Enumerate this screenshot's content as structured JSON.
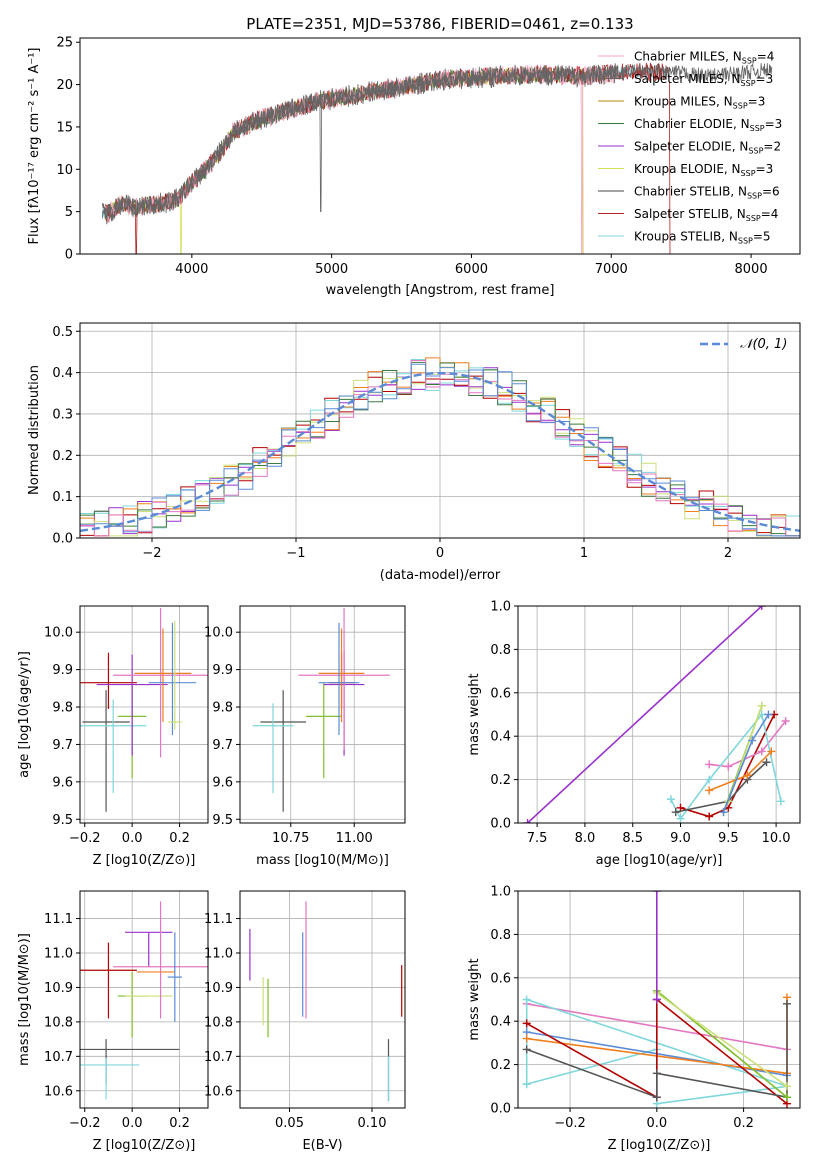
{
  "colors": {
    "Chabrier MILES": "#f5a3bf",
    "Salpeter MILES": "#666666",
    "Kroupa MILES": "#b8860b",
    "Chabrier ELODIE": "#3d7a3d",
    "Salpeter ELODIE": "#9932cc",
    "Kroupa ELODIE": "#d4e157",
    "Chabrier STELIB": "#444444",
    "Salpeter STELIB": "#b22222",
    "Kroupa STELIB": "#7fd7dc",
    "pink": "#e377c2",
    "purple": "#9932cc",
    "blue": "#5b8bd6",
    "orange": "#f07f1e",
    "olive": "#7fbf2a",
    "lime": "#cbe07a",
    "dark": "#555555",
    "red": "#b30000",
    "cyan": "#7fd7dc"
  },
  "chart_data": [
    {
      "type": "line",
      "title": "PLATE=2351, MJD=53786, FIBERID=0461, z=0.133",
      "xlabel": "wavelength [Angstrom, rest frame]",
      "ylabel": "Flux [fλ10⁻¹⁷ erg cm⁻² s⁻¹ A⁻¹]",
      "xlim": [
        3200,
        8350
      ],
      "ylim": [
        0,
        25.5
      ],
      "xticks": [
        "4000",
        "5000",
        "6000",
        "7000",
        "8000"
      ],
      "yticks": [
        "0",
        "5",
        "10",
        "15",
        "20",
        "25"
      ],
      "grid": false,
      "legend": "right",
      "spectrum_x": [
        3400,
        3500,
        3600,
        3700,
        3800,
        3900,
        4000,
        4100,
        4200,
        4300,
        4400,
        4500,
        4700,
        4900,
        5100,
        5300,
        5500,
        5800,
        6000,
        6200,
        6500,
        6800,
        7100,
        7400,
        7700,
        8100
      ],
      "spectrum_y": [
        4.8,
        6.0,
        5.5,
        5.8,
        6.0,
        6.5,
        8.5,
        10.0,
        12.0,
        14.5,
        15.2,
        16.0,
        17.0,
        18.0,
        18.6,
        19.2,
        19.7,
        20.6,
        20.8,
        21.0,
        21.2,
        21.0,
        21.5,
        21.5,
        21.0,
        21.7
      ],
      "series": [
        {
          "name": "Chabrier MILES, N_SSP=4"
        },
        {
          "name": "Salpeter MILES, N_SSP=3"
        },
        {
          "name": "Kroupa MILES, N_SSP=3"
        },
        {
          "name": "Chabrier ELODIE, N_SSP=3"
        },
        {
          "name": "Salpeter ELODIE, N_SSP=2"
        },
        {
          "name": "Kroupa ELODIE, N_SSP=3"
        },
        {
          "name": "Chabrier STELIB, N_SSP=6"
        },
        {
          "name": "Salpeter STELIB, N_SSP=4"
        },
        {
          "name": "Kroupa STELIB, N_SSP=5"
        }
      ]
    },
    {
      "type": "histogram",
      "xlabel": "(data-model)/error",
      "ylabel": "Normed distribution",
      "xlim": [
        -2.5,
        2.5
      ],
      "ylim": [
        0,
        0.52
      ],
      "xticks": [
        "−2",
        "−1",
        "0",
        "1",
        "2"
      ],
      "yticks": [
        "0.0",
        "0.1",
        "0.2",
        "0.3",
        "0.4",
        "0.5"
      ],
      "grid": true,
      "legend": "top-right",
      "reference_curve": "𝒩(0, 1)",
      "bin_width": 0.1
    },
    {
      "type": "scatter",
      "xlabel": "Z [log10(Z/Z⊙)]",
      "ylabel": "age [log10(age/yr)]",
      "xlim": [
        -0.22,
        0.32
      ],
      "ylim": [
        9.49,
        10.07
      ],
      "xticks": [
        "−0.2",
        "0.0",
        "0.2"
      ],
      "yticks": [
        "9.5",
        "9.6",
        "9.7",
        "9.8",
        "9.9",
        "10.0"
      ],
      "grid": true,
      "points": [
        {
          "color": "red",
          "x": -0.1,
          "y": 9.865,
          "xerr": 0.12,
          "yerr": [
            0.07,
            0.08
          ]
        },
        {
          "color": "dark",
          "x": -0.11,
          "y": 9.76,
          "xerr": 0.1,
          "yerr": [
            0.24,
            0.085
          ]
        },
        {
          "color": "cyan",
          "x": -0.08,
          "y": 9.75,
          "xerr": 0.14,
          "yerr": [
            0.18,
            0.07
          ]
        },
        {
          "color": "olive",
          "x": 0.0,
          "y": 9.775,
          "xerr": 0.06,
          "yerr": [
            0.165,
            0.09
          ]
        },
        {
          "color": "purple",
          "x": 0.0,
          "y": 9.86,
          "xerr": 0.15,
          "yerr": [
            0.19,
            0.08
          ]
        },
        {
          "color": "pink",
          "x": 0.12,
          "y": 9.885,
          "xerr": 0.2,
          "yerr": [
            0.22,
            0.18
          ]
        },
        {
          "color": "orange",
          "x": 0.13,
          "y": 9.89,
          "xerr": 0.12,
          "yerr": [
            0.13,
            0.12
          ]
        },
        {
          "color": "blue",
          "x": 0.17,
          "y": 9.865,
          "xerr": 0.1,
          "yerr": [
            0.14,
            0.16
          ]
        },
        {
          "color": "lime",
          "x": 0.18,
          "y": 9.76,
          "xerr": 0.03,
          "yerr": [
            0.02,
            0.27
          ]
        }
      ]
    },
    {
      "type": "scatter",
      "xlabel": "mass [log10(M/M⊙)]",
      "ylabel": "",
      "xlim": [
        10.55,
        11.2
      ],
      "ylim": [
        9.49,
        10.07
      ],
      "xticks": [
        "10.75",
        "11.00"
      ],
      "yticks": [
        "9.5",
        "9.6",
        "9.7",
        "9.8",
        "9.9",
        "10.0"
      ],
      "grid": true,
      "points": [
        {
          "color": "dark",
          "x": 10.72,
          "y": 9.76,
          "xerr": 0.09,
          "yerr": [
            0.24,
            0.085
          ]
        },
        {
          "color": "cyan",
          "x": 10.68,
          "y": 9.75,
          "xerr": 0.08,
          "yerr": [
            0.18,
            0.06
          ]
        },
        {
          "color": "olive",
          "x": 10.88,
          "y": 9.775,
          "xerr": 0.07,
          "yerr": [
            0.165,
            0.09
          ]
        },
        {
          "color": "purple",
          "x": 10.96,
          "y": 9.86,
          "xerr": 0.08,
          "yerr": [
            0.19,
            0.09
          ]
        },
        {
          "color": "red",
          "x": 10.95,
          "y": 9.865,
          "xerr": 0.05,
          "yerr": [
            0.07,
            0.08
          ]
        },
        {
          "color": "pink",
          "x": 10.96,
          "y": 9.885,
          "xerr": 0.18,
          "yerr": [
            0.2,
            0.18
          ]
        },
        {
          "color": "orange",
          "x": 10.95,
          "y": 9.89,
          "xerr": 0.09,
          "yerr": [
            0.13,
            0.12
          ]
        },
        {
          "color": "blue",
          "x": 10.94,
          "y": 9.865,
          "xerr": 0.08,
          "yerr": [
            0.14,
            0.16
          ]
        }
      ]
    },
    {
      "type": "line",
      "xlabel": "age [log10(age/yr)]",
      "ylabel": "mass weight",
      "xlim": [
        7.3,
        10.25
      ],
      "ylim": [
        0,
        1
      ],
      "xticks": [
        "7.5",
        "8.0",
        "8.5",
        "9.0",
        "9.5",
        "10.0"
      ],
      "yticks": [
        "0.0",
        "0.2",
        "0.4",
        "0.6",
        "0.8",
        "1.0"
      ],
      "grid": true,
      "series": [
        {
          "color": "purple",
          "x": [
            7.4,
            9.85
          ],
          "y": [
            0.0,
            1.0
          ]
        },
        {
          "color": "red",
          "x": [
            9.0,
            9.3,
            9.5,
            9.98
          ],
          "y": [
            0.07,
            0.03,
            0.07,
            0.5
          ]
        },
        {
          "color": "pink",
          "x": [
            9.3,
            9.5,
            9.85,
            10.1
          ],
          "y": [
            0.27,
            0.26,
            0.33,
            0.47
          ]
        },
        {
          "color": "cyan",
          "x": [
            8.9,
            9.0,
            9.3,
            9.85,
            10.05
          ],
          "y": [
            0.11,
            0.02,
            0.2,
            0.5,
            0.1
          ]
        },
        {
          "color": "dark",
          "x": [
            8.95,
            9.5,
            9.7,
            9.9
          ],
          "y": [
            0.05,
            0.1,
            0.2,
            0.28
          ]
        },
        {
          "color": "olive",
          "x": [
            9.45,
            9.85
          ],
          "y": [
            0.05,
            0.54
          ]
        },
        {
          "color": "lime",
          "x": [
            9.5,
            9.85
          ],
          "y": [
            0.1,
            0.54
          ]
        },
        {
          "color": "orange",
          "x": [
            9.3,
            9.7,
            9.95
          ],
          "y": [
            0.15,
            0.22,
            0.33
          ]
        },
        {
          "color": "blue",
          "x": [
            9.45,
            9.75,
            9.92
          ],
          "y": [
            0.05,
            0.38,
            0.5
          ]
        }
      ]
    },
    {
      "type": "scatter",
      "xlabel": "Z [log10(Z/Z⊙)]",
      "ylabel": "mass [log10(M/M⊙)]",
      "xlim": [
        -0.22,
        0.32
      ],
      "ylim": [
        10.55,
        11.18
      ],
      "xticks": [
        "−0.2",
        "0.0",
        "0.2"
      ],
      "yticks": [
        "10.6",
        "10.7",
        "10.8",
        "10.9",
        "11.0",
        "11.1"
      ],
      "grid": true,
      "points": [
        {
          "color": "red",
          "x": -0.1,
          "y": 10.95,
          "xerr": 0.12,
          "yerr": [
            0.14,
            0.08
          ]
        },
        {
          "color": "dark",
          "x": -0.11,
          "y": 10.72,
          "xerr": 0.31,
          "yerr": [
            0.1,
            0.03
          ]
        },
        {
          "color": "cyan",
          "x": -0.11,
          "y": 10.675,
          "xerr": 0.14,
          "yerr": [
            0.1,
            0.02
          ]
        },
        {
          "color": "olive",
          "x": 0.0,
          "y": 10.875,
          "xerr": 0.06,
          "yerr": [
            0.12,
            0.07
          ]
        },
        {
          "color": "lime",
          "x": 0.07,
          "y": 10.875,
          "xerr": 0.1,
          "yerr": [
            0.0,
            0.0
          ]
        },
        {
          "color": "purple",
          "x": 0.07,
          "y": 11.06,
          "xerr": 0.1,
          "yerr": [
            0.1,
            0.0
          ]
        },
        {
          "color": "pink",
          "x": 0.12,
          "y": 10.96,
          "xerr": 0.2,
          "yerr": [
            0.15,
            0.19
          ]
        },
        {
          "color": "orange",
          "x": 0.1,
          "y": 10.945,
          "xerr": 0.08,
          "yerr": [
            0.0,
            0.0
          ]
        },
        {
          "color": "blue",
          "x": 0.18,
          "y": 10.93,
          "xerr": 0.03,
          "yerr": [
            0.13,
            0.13
          ]
        }
      ]
    },
    {
      "type": "scatter",
      "xlabel": "E(B-V)",
      "ylabel": "",
      "xlim": [
        0.02,
        0.12
      ],
      "ylim": [
        10.55,
        11.18
      ],
      "xticks": [
        "0.05",
        "0.10"
      ],
      "yticks": [
        "10.6",
        "10.7",
        "10.8",
        "10.9",
        "11.0",
        "11.1"
      ],
      "grid": true,
      "points": [
        {
          "color": "purple",
          "x": 0.026,
          "y": 11.0,
          "yerr": [
            0.08,
            0.07
          ]
        },
        {
          "color": "lime",
          "x": 0.034,
          "y": 10.86,
          "yerr": [
            0.07,
            0.07
          ]
        },
        {
          "color": "olive",
          "x": 0.037,
          "y": 10.84,
          "yerr": [
            0.085,
            0.085
          ]
        },
        {
          "color": "blue",
          "x": 0.058,
          "y": 10.935,
          "yerr": [
            0.12,
            0.125
          ]
        },
        {
          "color": "pink",
          "x": 0.06,
          "y": 10.98,
          "yerr": [
            0.17,
            0.17
          ]
        },
        {
          "color": "dark",
          "x": 0.11,
          "y": 10.66,
          "yerr": [
            0.09,
            0.09
          ]
        },
        {
          "color": "cyan",
          "x": 0.11,
          "y": 10.635,
          "yerr": [
            0.065,
            0.065
          ]
        },
        {
          "color": "red",
          "x": 0.118,
          "y": 10.89,
          "yerr": [
            0.075,
            0.075
          ]
        }
      ]
    },
    {
      "type": "line",
      "xlabel": "Z [log10(Z/Z⊙)]",
      "ylabel": "mass weight",
      "xlim": [
        -0.32,
        0.33
      ],
      "ylim": [
        0,
        1
      ],
      "xticks": [
        "−0.2",
        "0.0",
        "0.2"
      ],
      "yticks": [
        "0.0",
        "0.2",
        "0.4",
        "0.6",
        "0.8",
        "1.0"
      ],
      "grid": true,
      "series": [
        {
          "color": "pink",
          "x": [
            -0.3,
            0.3
          ],
          "y": [
            0.48,
            0.27
          ]
        },
        {
          "color": "cyan",
          "x": [
            -0.3,
            0.0,
            0.0,
            0.3,
            -0.3,
            -0.3
          ],
          "y": [
            0.11,
            0.27,
            0.02,
            0.1,
            0.5,
            0.11
          ]
        },
        {
          "color": "blue",
          "x": [
            -0.3,
            0.3
          ],
          "y": [
            0.35,
            0.15
          ]
        },
        {
          "color": "orange",
          "x": [
            -0.3,
            0.3,
            0.3
          ],
          "y": [
            0.32,
            0.16,
            0.51
          ]
        },
        {
          "color": "red",
          "x": [
            -0.3,
            0.0,
            0.0,
            0.3
          ],
          "y": [
            0.39,
            0.05,
            0.5,
            0.02
          ]
        },
        {
          "color": "dark",
          "x": [
            -0.3,
            0.0,
            0.0,
            0.3,
            0.3
          ],
          "y": [
            0.27,
            0.05,
            0.16,
            0.05,
            0.48
          ]
        },
        {
          "color": "olive",
          "x": [
            0.0,
            0.3
          ],
          "y": [
            0.54,
            0.05
          ]
        },
        {
          "color": "lime",
          "x": [
            0.0,
            0.3
          ],
          "y": [
            0.53,
            0.1
          ]
        },
        {
          "color": "purple",
          "x": [
            0.0,
            0.0
          ],
          "y": [
            0.5,
            1.0
          ]
        }
      ]
    }
  ]
}
